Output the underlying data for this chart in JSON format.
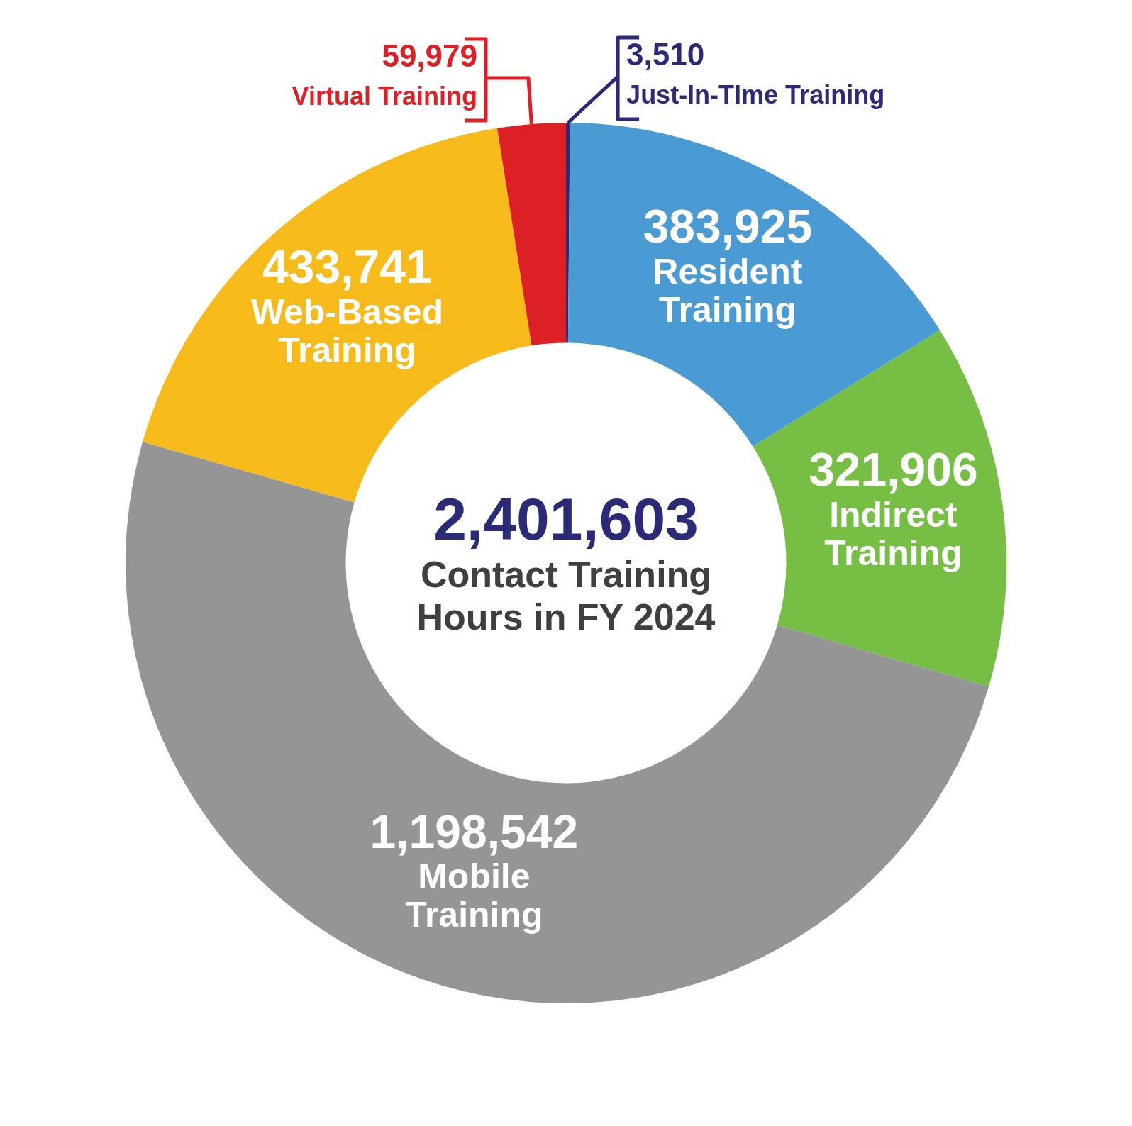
{
  "chart_data": {
    "type": "donut",
    "title": "Contact Training Hours in FY 2024",
    "annotations": [
      "2,401,603"
    ],
    "categories": [
      "Just-In-TIme Training",
      "Resident Training",
      "Indirect Training",
      "Mobile Training",
      "Web-Based Training",
      "Virtual Training"
    ],
    "values": [
      3510,
      383925,
      321906,
      1198542,
      433741,
      59979
    ],
    "colors": [
      "#2b2a76",
      "#4a9bd4",
      "#76bf44",
      "#959595",
      "#f6bb1a",
      "#dd1f26"
    ],
    "value_labels": [
      "3,510",
      "383,925",
      "321,906",
      "1,198,542",
      "433,741",
      "59,979"
    ],
    "legend": false
  }
}
